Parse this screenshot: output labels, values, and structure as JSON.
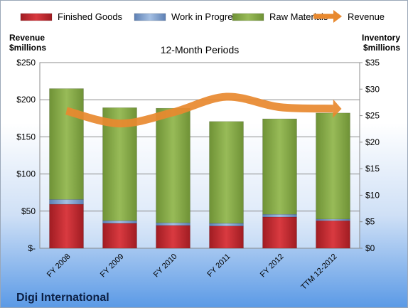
{
  "chart_data": {
    "type": "bar",
    "stacked": true,
    "title": "12-Month Periods",
    "company": "Digi International",
    "left_axis_label": [
      "Revenue",
      "$millions"
    ],
    "right_axis_label": [
      "Inventory",
      "$millions"
    ],
    "categories": [
      "FY 2008",
      "FY 2009",
      "FY 2010",
      "FY 2011",
      "FY 2012",
      "TTM 12-2012"
    ],
    "series": [
      {
        "name": "Finished Goods",
        "axis": "right",
        "color": "#c0262d",
        "values": [
          8.3,
          4.7,
          4.3,
          4.2,
          5.9,
          5.2
        ]
      },
      {
        "name": "Work in Progress",
        "axis": "right",
        "color": "#7a9ccc",
        "values": [
          0.9,
          0.5,
          0.5,
          0.5,
          0.5,
          0.3
        ]
      },
      {
        "name": "Raw Materials",
        "axis": "right",
        "color": "#8fb24f",
        "values": [
          20.9,
          21.3,
          21.6,
          19.2,
          18.0,
          20.0
        ]
      },
      {
        "name": "Revenue",
        "axis": "left",
        "type": "line",
        "color": "#e8892f",
        "values": [
          185,
          168,
          183,
          204,
          190,
          188
        ]
      }
    ],
    "left_axis": {
      "ylim": [
        0,
        250
      ],
      "ticks": [
        "$-",
        "$50",
        "$100",
        "$150",
        "$200",
        "$250"
      ]
    },
    "right_axis": {
      "ylim": [
        0,
        35
      ],
      "ticks": [
        "$0",
        "$5",
        "$10",
        "$15",
        "$20",
        "$25",
        "$30",
        "$35"
      ]
    },
    "grid": true,
    "legend": "top"
  }
}
